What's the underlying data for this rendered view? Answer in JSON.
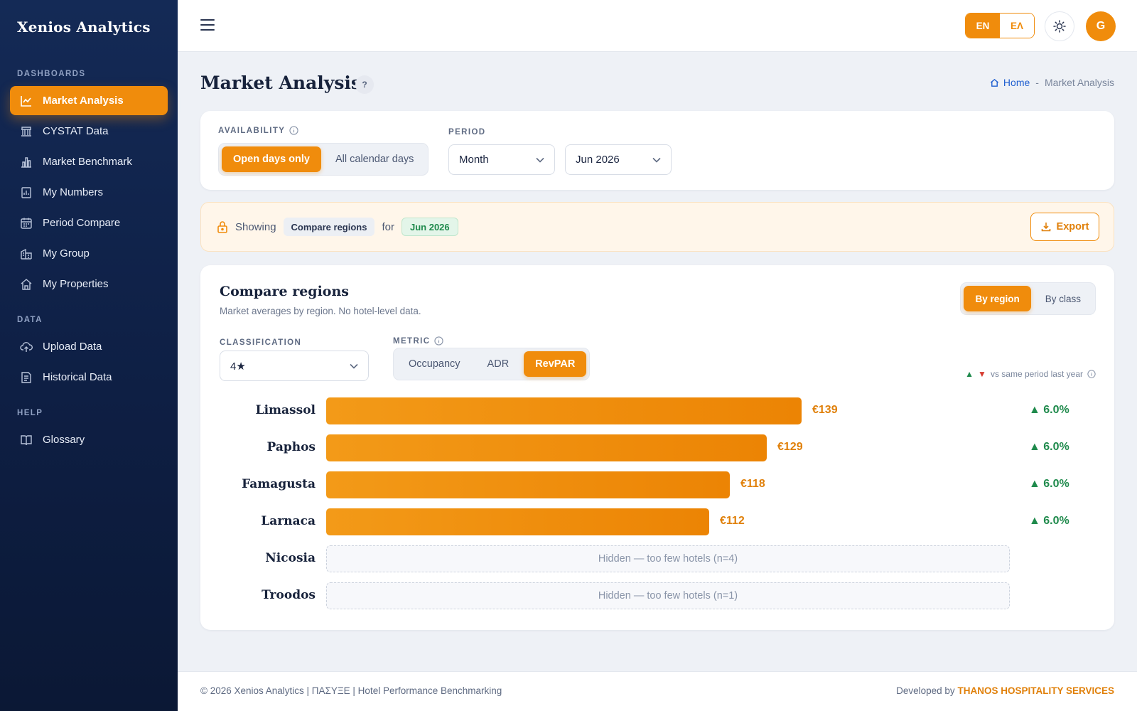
{
  "brand": "Xenios Analytics",
  "sidebar": {
    "sections": [
      {
        "title": "DASHBOARDS",
        "items": [
          {
            "label": "Market Analysis",
            "icon": "line-chart-icon",
            "active": true
          },
          {
            "label": "CYSTAT Data",
            "icon": "bank-icon"
          },
          {
            "label": "Market Benchmark",
            "icon": "bar-chart-icon"
          },
          {
            "label": "My Numbers",
            "icon": "report-icon"
          },
          {
            "label": "Period Compare",
            "icon": "calendar-icon"
          },
          {
            "label": "My Group",
            "icon": "buildings-icon"
          },
          {
            "label": "My Properties",
            "icon": "home-icon"
          }
        ]
      },
      {
        "title": "DATA",
        "items": [
          {
            "label": "Upload Data",
            "icon": "cloud-upload-icon"
          },
          {
            "label": "Historical Data",
            "icon": "document-icon"
          }
        ]
      },
      {
        "title": "HELP",
        "items": [
          {
            "label": "Glossary",
            "icon": "book-icon"
          }
        ]
      }
    ]
  },
  "header": {
    "lang_active": "EN",
    "lang_other": "ΕΛ",
    "avatar_initial": "G"
  },
  "page": {
    "title": "Market Analysis",
    "help": "?",
    "breadcrumb_home": "Home",
    "breadcrumb_sep": "-",
    "breadcrumb_current": "Market Analysis"
  },
  "filters": {
    "availability_label": "AVAILABILITY",
    "availability_options": [
      "Open days only",
      "All calendar days"
    ],
    "period_label": "PERIOD",
    "period_type": "Month",
    "period_value": "Jun 2026"
  },
  "info_bar": {
    "showing": "Showing",
    "view_chip": "Compare regions",
    "for": "for",
    "period_chip": "Jun 2026",
    "export": "Export"
  },
  "compare": {
    "title": "Compare regions",
    "subtitle": "Market averages by region. No hotel-level data.",
    "view_options": [
      "By region",
      "By class"
    ],
    "classification_label": "CLASSIFICATION",
    "classification_value": "4★",
    "metric_label": "METRIC",
    "metric_options": [
      "Occupancy",
      "ADR",
      "RevPAR"
    ],
    "metric_active": "RevPAR",
    "legend_text": "vs same period last year",
    "colors": {
      "accent": "#f08c0c",
      "up": "#1f8a4c",
      "down": "#d63b2f"
    }
  },
  "chart_data": {
    "type": "bar",
    "orientation": "horizontal",
    "categories": [
      "Limassol",
      "Paphos",
      "Famagusta",
      "Larnaca",
      "Nicosia",
      "Troodos"
    ],
    "values": [
      139,
      129,
      118,
      112,
      null,
      null
    ],
    "value_labels": [
      "€139",
      "€129",
      "€118",
      "€112",
      "",
      ""
    ],
    "deltas": [
      "▲ 6.0%",
      "▲ 6.0%",
      "▲ 6.0%",
      "▲ 6.0%",
      "",
      ""
    ],
    "hidden_labels": [
      "",
      "",
      "",
      "",
      "Hidden — too few hotels (n=4)",
      "Hidden — too few hotels (n=1)"
    ],
    "xlim": [
      0,
      200
    ]
  },
  "footer": {
    "left": "© 2026 Xenios Analytics | ΠΑΣΥΞΕ | Hotel Performance Benchmarking",
    "dev_prefix": "Developed by",
    "dev_name": "THANOS HOSPITALITY SERVICES"
  }
}
